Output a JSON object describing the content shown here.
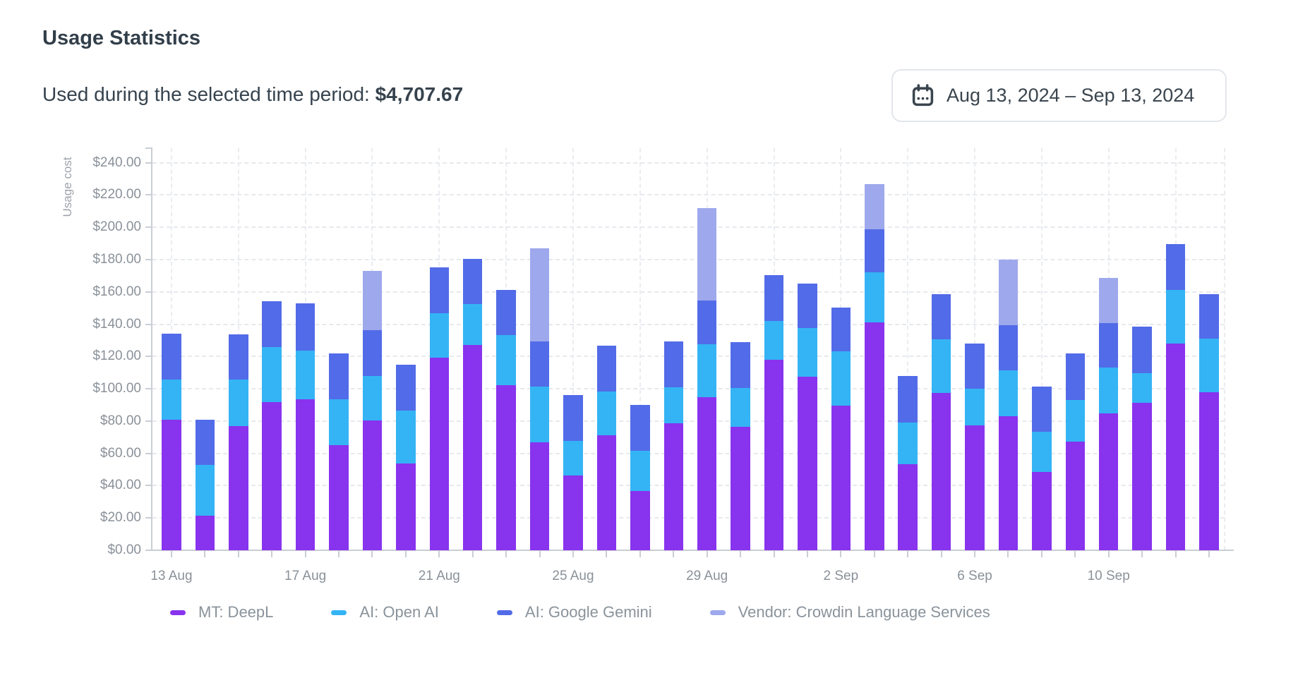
{
  "header": {
    "title": "Usage Statistics",
    "subtitle_label": "Used during the selected time period: ",
    "subtitle_value": "$4,707.67"
  },
  "date_picker": {
    "icon": "calendar-icon",
    "label": "Aug 13, 2024 – Sep 13, 2024"
  },
  "chart_data": {
    "type": "bar",
    "stacked": true,
    "ylabel": "Usage cost",
    "ylim": [
      0,
      249
    ],
    "y_tick_step": 20,
    "y_tick_labels": [
      "$0.00",
      "$20.00",
      "$40.00",
      "$60.00",
      "$80.00",
      "$100.00",
      "$120.00",
      "$140.00",
      "$160.00",
      "$180.00",
      "$200.00",
      "$220.00",
      "$240.00"
    ],
    "grid": true,
    "legend_position": "bottom",
    "categories": [
      "13 Aug",
      "14 Aug",
      "15 Aug",
      "16 Aug",
      "17 Aug",
      "18 Aug",
      "19 Aug",
      "20 Aug",
      "21 Aug",
      "22 Aug",
      "23 Aug",
      "24 Aug",
      "25 Aug",
      "26 Aug",
      "27 Aug",
      "28 Aug",
      "29 Aug",
      "30 Aug",
      "31 Aug",
      "1 Sep",
      "2 Sep",
      "3 Sep",
      "4 Sep",
      "5 Sep",
      "6 Sep",
      "7 Sep",
      "8 Sep",
      "9 Sep",
      "10 Sep",
      "11 Sep",
      "12 Sep",
      "13 Sep"
    ],
    "x_tick_labels": [
      "13 Aug",
      "17 Aug",
      "21 Aug",
      "25 Aug",
      "29 Aug",
      "2 Sep",
      "6 Sep",
      "10 Sep"
    ],
    "x_tick_bar_indices": [
      0,
      4,
      8,
      12,
      16,
      20,
      24,
      28
    ],
    "series": [
      {
        "name": "MT: DeepL",
        "color": "#8833EE",
        "values": [
          80.9,
          21.5,
          76.9,
          91.8,
          93.6,
          65.2,
          80.5,
          53.6,
          119.1,
          127.1,
          102.1,
          66.7,
          46.3,
          71.0,
          36.5,
          78.7,
          94.8,
          76.6,
          118.0,
          107.4,
          89.4,
          141.3,
          53.3,
          97.2,
          77.3,
          83.1,
          48.6,
          67.1,
          84.6,
          91.1,
          127.8,
          97.9
        ]
      },
      {
        "name": "AI: Open AI",
        "color": "#34B4F4",
        "values": [
          24.8,
          31.3,
          28.8,
          34.2,
          30.2,
          28.1,
          27.4,
          32.7,
          27.8,
          25.2,
          31.2,
          34.6,
          21.3,
          27.4,
          25.2,
          22.3,
          32.7,
          24.0,
          23.8,
          30.0,
          34.0,
          30.6,
          25.9,
          33.5,
          22.8,
          28.4,
          24.8,
          25.8,
          28.4,
          18.6,
          33.2,
          33.2
        ]
      },
      {
        "name": "AI: Google Gemini",
        "color": "#526BE8",
        "values": [
          28.4,
          28.0,
          27.9,
          28.0,
          29.2,
          28.7,
          28.6,
          28.8,
          28.3,
          28.0,
          28.1,
          28.1,
          28.3,
          28.1,
          28.3,
          28.3,
          27.3,
          28.4,
          28.6,
          27.7,
          26.7,
          26.9,
          28.7,
          28.1,
          28.1,
          27.9,
          27.9,
          28.8,
          27.6,
          28.7,
          28.4,
          27.7
        ]
      },
      {
        "name": "Vendor: Crowdin Language Services",
        "color": "#9EA8EC",
        "values": [
          0,
          0,
          0,
          0,
          0,
          0,
          36.4,
          0,
          0,
          0,
          0,
          57.5,
          0,
          0,
          0,
          0,
          57.2,
          0,
          0,
          0,
          0,
          28.0,
          0,
          0,
          0,
          40.5,
          0,
          0,
          28.0,
          0,
          0,
          0
        ]
      }
    ]
  }
}
